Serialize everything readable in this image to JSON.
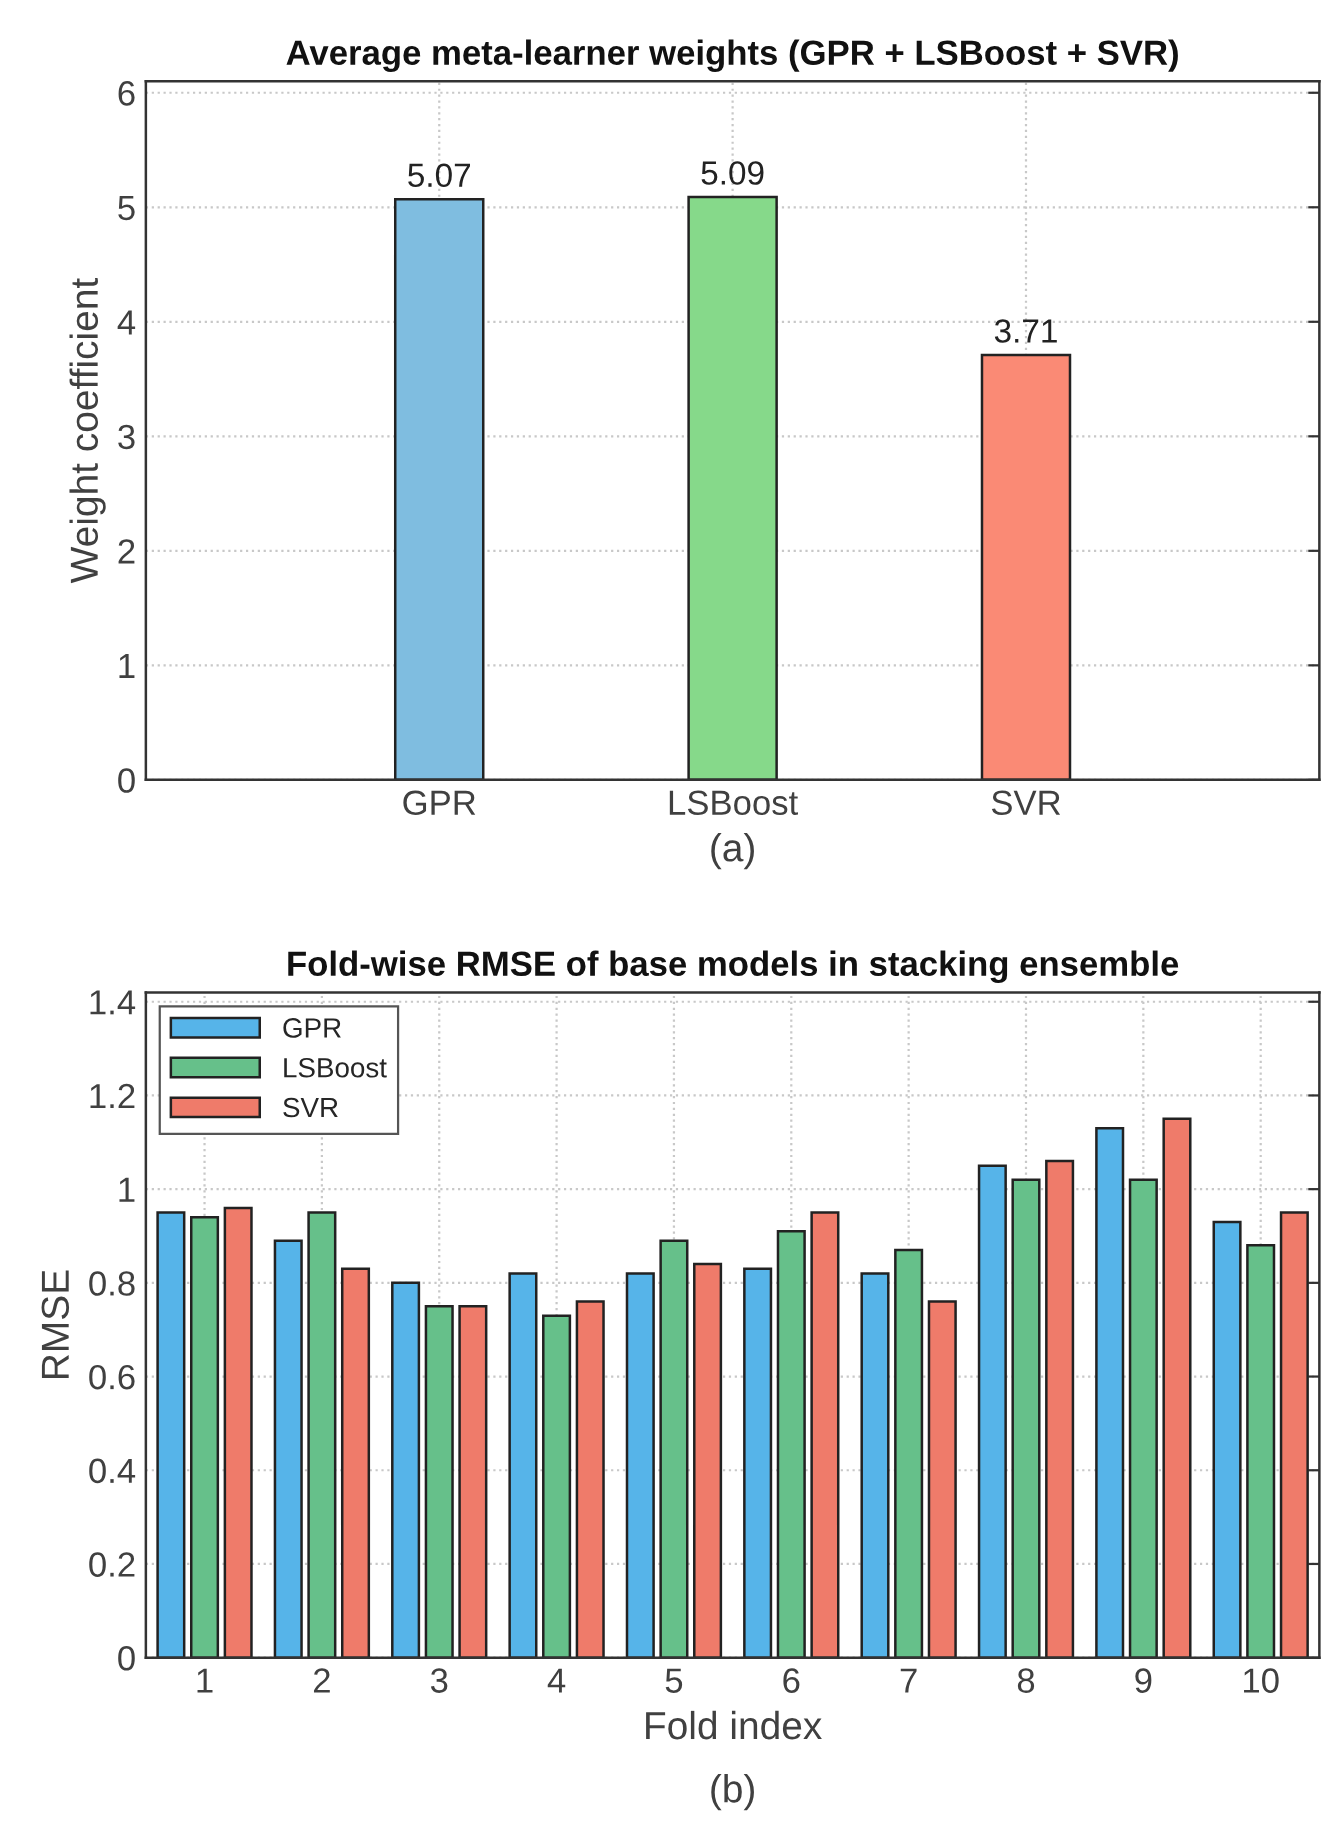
{
  "chart_data": [
    {
      "type": "bar",
      "title": "Average meta-learner weights (GPR + LSBoost + SVR)",
      "ylabel": "Weight coefficient",
      "xlabel": "(a)",
      "categories": [
        "GPR",
        "LSBoost",
        "SVR"
      ],
      "values": [
        5.07,
        5.09,
        3.71
      ],
      "colors": [
        "#7fbde0",
        "#86d98a",
        "#fa8a75"
      ],
      "data_labels": true,
      "ylim": [
        0,
        6.1
      ],
      "yticks": [
        0,
        1,
        2,
        3,
        4,
        5,
        6
      ],
      "grid": true
    },
    {
      "type": "bar",
      "title": "Fold-wise RMSE of base models in stacking ensemble",
      "xlabel": "Fold index",
      "ylabel": "RMSE",
      "x": [
        1,
        2,
        3,
        4,
        5,
        6,
        7,
        8,
        9,
        10
      ],
      "series": [
        {
          "name": "GPR",
          "color": "#56b4e9",
          "values": [
            0.95,
            0.89,
            0.8,
            0.82,
            0.82,
            0.83,
            0.82,
            1.05,
            1.13,
            0.93
          ]
        },
        {
          "name": "LSBoost",
          "color": "#66c08a",
          "values": [
            0.94,
            0.95,
            0.75,
            0.73,
            0.89,
            0.91,
            0.87,
            1.02,
            1.02,
            0.88
          ]
        },
        {
          "name": "SVR",
          "color": "#ef7b6a",
          "values": [
            0.96,
            0.83,
            0.75,
            0.76,
            0.84,
            0.95,
            0.76,
            1.06,
            1.15,
            0.95
          ]
        }
      ],
      "xlim": [
        0.5,
        10.5
      ],
      "xticks": [
        1,
        2,
        3,
        4,
        5,
        6,
        7,
        8,
        9,
        10
      ],
      "ylim": [
        0,
        1.42
      ],
      "yticks": [
        0,
        0.2,
        0.4,
        0.6,
        0.8,
        1,
        1.2,
        1.4
      ],
      "grid": true,
      "legend": "top left",
      "annotations": [
        "(b)"
      ]
    }
  ]
}
